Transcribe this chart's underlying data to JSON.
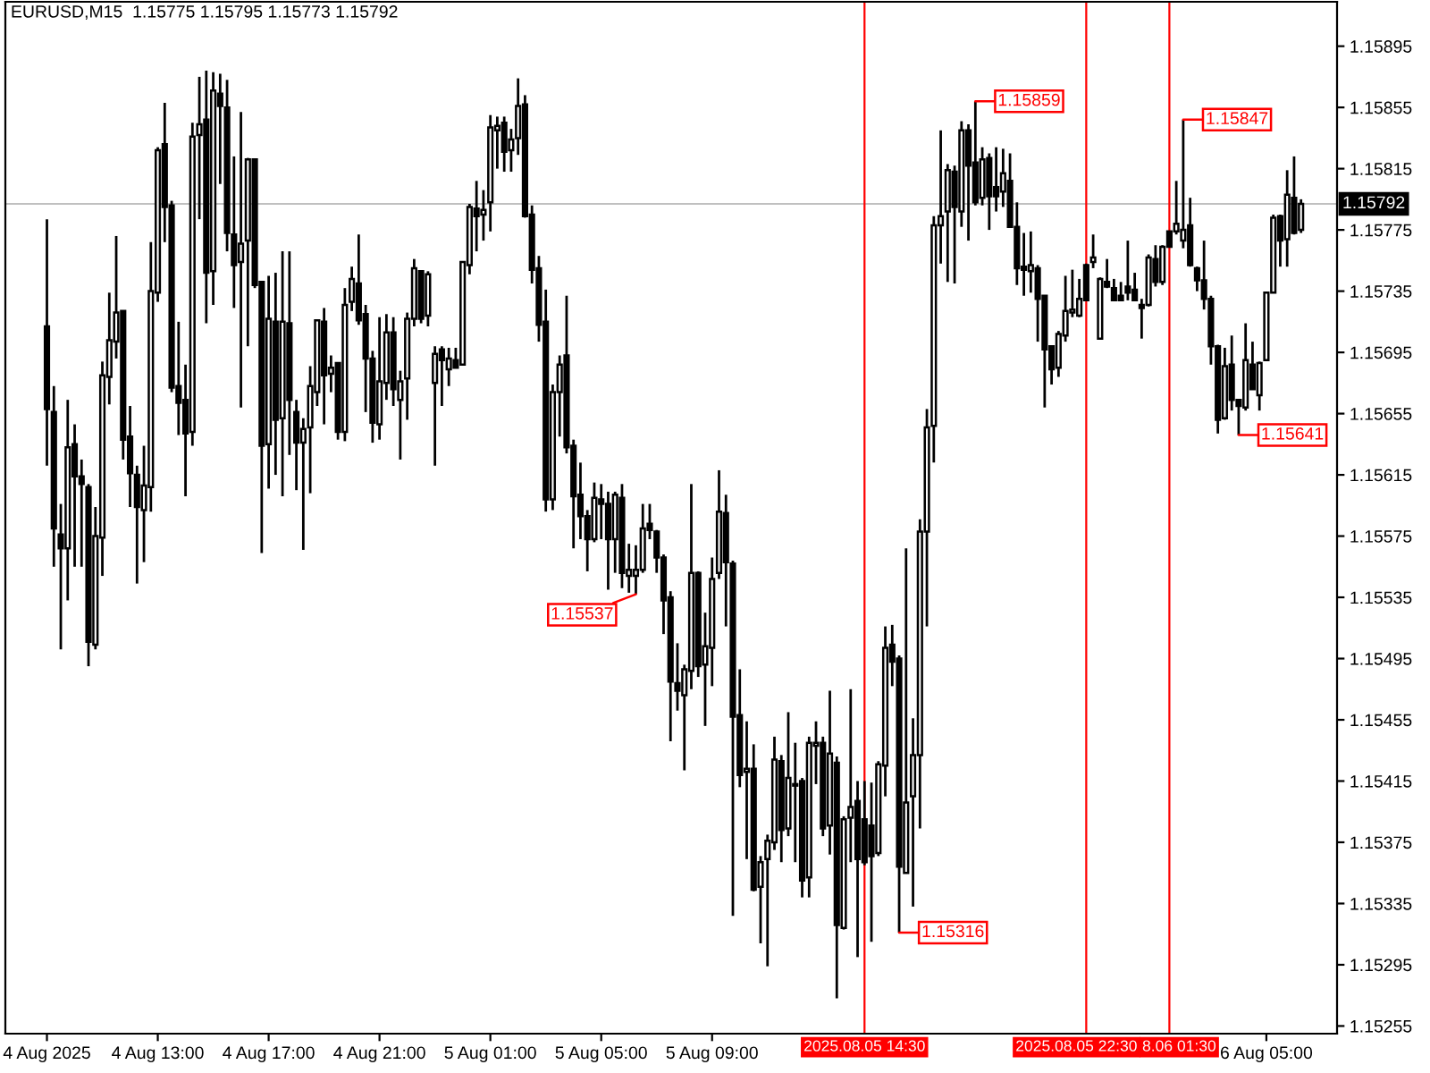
{
  "chart_data": {
    "type": "candlestick",
    "title": "EURUSD,M15  1.15775 1.15795 1.15773 1.15792",
    "color": "#000000",
    "x": [
      "2025-08-04T09:00",
      "2025-08-04T09:15",
      "2025-08-04T09:30",
      "2025-08-04T09:45",
      "2025-08-04T10:00",
      "2025-08-04T10:15",
      "2025-08-04T10:30",
      "2025-08-04T10:45",
      "2025-08-04T11:00",
      "2025-08-04T11:15",
      "2025-08-04T11:30",
      "2025-08-04T11:45",
      "2025-08-04T12:00",
      "2025-08-04T12:15",
      "2025-08-04T12:30",
      "2025-08-04T12:45",
      "2025-08-04T13:00",
      "2025-08-04T13:15",
      "2025-08-04T13:30",
      "2025-08-04T13:45",
      "2025-08-04T14:00",
      "2025-08-04T14:15",
      "2025-08-04T14:30",
      "2025-08-04T14:45",
      "2025-08-04T15:00",
      "2025-08-04T15:15",
      "2025-08-04T15:30",
      "2025-08-04T15:45",
      "2025-08-04T16:00",
      "2025-08-04T16:15",
      "2025-08-04T16:30",
      "2025-08-04T16:45",
      "2025-08-04T17:00",
      "2025-08-04T17:15",
      "2025-08-04T17:30",
      "2025-08-04T17:45",
      "2025-08-04T18:00",
      "2025-08-04T18:15",
      "2025-08-04T18:30",
      "2025-08-04T18:45",
      "2025-08-04T19:00",
      "2025-08-04T19:15",
      "2025-08-04T19:30",
      "2025-08-04T19:45",
      "2025-08-04T20:00",
      "2025-08-04T20:15",
      "2025-08-04T20:30",
      "2025-08-04T20:45",
      "2025-08-04T21:00",
      "2025-08-04T21:15",
      "2025-08-04T21:30",
      "2025-08-04T21:45",
      "2025-08-04T22:00",
      "2025-08-04T22:15",
      "2025-08-04T22:30",
      "2025-08-04T22:45",
      "2025-08-04T23:00",
      "2025-08-04T23:15",
      "2025-08-04T23:30",
      "2025-08-04T23:45",
      "2025-08-05T00:00",
      "2025-08-05T00:15",
      "2025-08-05T00:30",
      "2025-08-05T00:45",
      "2025-08-05T01:00",
      "2025-08-05T01:15",
      "2025-08-05T01:30",
      "2025-08-05T01:45",
      "2025-08-05T02:00",
      "2025-08-05T02:15",
      "2025-08-05T02:30",
      "2025-08-05T02:45",
      "2025-08-05T03:00",
      "2025-08-05T03:15",
      "2025-08-05T03:30",
      "2025-08-05T03:45",
      "2025-08-05T04:00",
      "2025-08-05T04:15",
      "2025-08-05T04:30",
      "2025-08-05T04:45",
      "2025-08-05T05:00",
      "2025-08-05T05:15",
      "2025-08-05T05:30",
      "2025-08-05T05:45",
      "2025-08-05T06:00",
      "2025-08-05T06:15",
      "2025-08-05T06:30",
      "2025-08-05T06:45",
      "2025-08-05T07:00",
      "2025-08-05T07:15",
      "2025-08-05T07:30",
      "2025-08-05T07:45",
      "2025-08-05T08:00",
      "2025-08-05T08:15",
      "2025-08-05T08:30",
      "2025-08-05T08:45",
      "2025-08-05T09:00",
      "2025-08-05T09:15",
      "2025-08-05T09:30",
      "2025-08-05T09:45",
      "2025-08-05T10:00",
      "2025-08-05T10:15",
      "2025-08-05T10:30",
      "2025-08-05T10:45",
      "2025-08-05T11:00",
      "2025-08-05T11:15",
      "2025-08-05T11:30",
      "2025-08-05T11:45",
      "2025-08-05T12:00",
      "2025-08-05T12:15",
      "2025-08-05T12:30",
      "2025-08-05T12:45",
      "2025-08-05T13:00",
      "2025-08-05T13:15",
      "2025-08-05T13:30",
      "2025-08-05T13:45",
      "2025-08-05T14:00",
      "2025-08-05T14:15",
      "2025-08-05T14:30",
      "2025-08-05T14:45",
      "2025-08-05T15:00",
      "2025-08-05T15:15",
      "2025-08-05T15:30",
      "2025-08-05T15:45",
      "2025-08-05T16:00",
      "2025-08-05T16:15",
      "2025-08-05T16:30",
      "2025-08-05T16:45",
      "2025-08-05T17:00",
      "2025-08-05T17:15",
      "2025-08-05T17:30",
      "2025-08-05T17:45",
      "2025-08-05T18:00",
      "2025-08-05T18:15",
      "2025-08-05T18:30",
      "2025-08-05T18:45",
      "2025-08-05T19:00",
      "2025-08-05T19:15",
      "2025-08-05T19:30",
      "2025-08-05T19:45",
      "2025-08-05T20:00",
      "2025-08-05T20:15",
      "2025-08-05T20:30",
      "2025-08-05T20:45",
      "2025-08-05T21:00",
      "2025-08-05T21:15",
      "2025-08-05T21:30",
      "2025-08-05T21:45",
      "2025-08-05T22:00",
      "2025-08-05T22:15",
      "2025-08-05T22:30",
      "2025-08-05T22:45",
      "2025-08-05T23:00",
      "2025-08-05T23:15",
      "2025-08-05T23:30",
      "2025-08-05T23:45",
      "2025-08-06T00:00",
      "2025-08-06T00:15",
      "2025-08-06T00:30",
      "2025-08-06T00:45",
      "2025-08-06T01:00",
      "2025-08-06T01:15",
      "2025-08-06T01:30",
      "2025-08-06T01:45",
      "2025-08-06T02:00",
      "2025-08-06T02:15",
      "2025-08-06T02:30",
      "2025-08-06T02:45",
      "2025-08-06T03:00",
      "2025-08-06T03:15",
      "2025-08-06T03:30",
      "2025-08-06T03:45",
      "2025-08-06T04:00",
      "2025-08-06T04:15",
      "2025-08-06T04:30",
      "2025-08-06T04:45",
      "2025-08-06T05:00",
      "2025-08-06T05:15",
      "2025-08-06T05:30",
      "2025-08-06T05:45",
      "2025-08-06T06:00",
      "2025-08-06T06:15"
    ],
    "ohlc": [
      [
        1.15712,
        1.15782,
        1.15621,
        1.15658
      ],
      [
        1.15656,
        1.15673,
        1.15555,
        1.1558
      ],
      [
        1.15576,
        1.15596,
        1.15501,
        1.15567
      ],
      [
        1.15567,
        1.15664,
        1.15533,
        1.15633
      ],
      [
        1.15635,
        1.15648,
        1.15555,
        1.15614
      ],
      [
        1.15614,
        1.15625,
        1.15555,
        1.15609
      ],
      [
        1.15607,
        1.15609,
        1.1549,
        1.15506
      ],
      [
        1.15504,
        1.15594,
        1.15501,
        1.15575
      ],
      [
        1.15574,
        1.15689,
        1.15549,
        1.1568
      ],
      [
        1.15679,
        1.15734,
        1.15661,
        1.15703
      ],
      [
        1.15702,
        1.15771,
        1.15691,
        1.15721
      ],
      [
        1.15722,
        1.15722,
        1.15625,
        1.15638
      ],
      [
        1.1564,
        1.1566,
        1.15594,
        1.15616
      ],
      [
        1.15615,
        1.15621,
        1.15544,
        1.15594
      ],
      [
        1.15592,
        1.15634,
        1.15558,
        1.15608
      ],
      [
        1.15607,
        1.15767,
        1.15591,
        1.15735
      ],
      [
        1.15734,
        1.15829,
        1.15728,
        1.15827
      ],
      [
        1.15831,
        1.15858,
        1.15767,
        1.1579
      ],
      [
        1.15791,
        1.15794,
        1.15669,
        1.15672
      ],
      [
        1.15673,
        1.15715,
        1.15641,
        1.15662
      ],
      [
        1.15664,
        1.15687,
        1.15601,
        1.15642
      ],
      [
        1.15643,
        1.15845,
        1.15634,
        1.15836
      ],
      [
        1.15837,
        1.15875,
        1.15782,
        1.15844
      ],
      [
        1.15847,
        1.15879,
        1.15714,
        1.15747
      ],
      [
        1.15748,
        1.15878,
        1.15726,
        1.15866
      ],
      [
        1.15864,
        1.15877,
        1.15805,
        1.15856
      ],
      [
        1.15855,
        1.15873,
        1.15761,
        1.15773
      ],
      [
        1.15772,
        1.15823,
        1.15724,
        1.15752
      ],
      [
        1.15754,
        1.15852,
        1.15659,
        1.15766
      ],
      [
        1.15768,
        1.15822,
        1.15699,
        1.15821
      ],
      [
        1.15821,
        1.15821,
        1.15737,
        1.15739
      ],
      [
        1.15741,
        1.15741,
        1.15564,
        1.15634
      ],
      [
        1.15635,
        1.15745,
        1.15606,
        1.15717
      ],
      [
        1.15715,
        1.15747,
        1.15615,
        1.15651
      ],
      [
        1.15652,
        1.15761,
        1.15601,
        1.15715
      ],
      [
        1.15714,
        1.15761,
        1.15628,
        1.15664
      ],
      [
        1.15656,
        1.15664,
        1.15605,
        1.15636
      ],
      [
        1.15636,
        1.15652,
        1.15566,
        1.15645
      ],
      [
        1.15646,
        1.15686,
        1.15603,
        1.15673
      ],
      [
        1.15669,
        1.15716,
        1.1566,
        1.15716
      ],
      [
        1.15715,
        1.15724,
        1.15648,
        1.1568
      ],
      [
        1.15681,
        1.15693,
        1.15669,
        1.15685
      ],
      [
        1.15688,
        1.15688,
        1.15638,
        1.15643
      ],
      [
        1.15643,
        1.15737,
        1.15637,
        1.15726
      ],
      [
        1.15728,
        1.15751,
        1.15722,
        1.15743
      ],
      [
        1.1574,
        1.15772,
        1.15713,
        1.15716
      ],
      [
        1.1572,
        1.15726,
        1.15656,
        1.15691
      ],
      [
        1.15691,
        1.15696,
        1.15636,
        1.15649
      ],
      [
        1.15648,
        1.15718,
        1.15638,
        1.15676
      ],
      [
        1.15675,
        1.1572,
        1.15664,
        1.15708
      ],
      [
        1.15708,
        1.15718,
        1.1566,
        1.15671
      ],
      [
        1.15664,
        1.15683,
        1.15625,
        1.15676
      ],
      [
        1.15678,
        1.15721,
        1.15651,
        1.15717
      ],
      [
        1.15717,
        1.15756,
        1.15712,
        1.1575
      ],
      [
        1.15748,
        1.15748,
        1.15714,
        1.15717
      ],
      [
        1.15719,
        1.15748,
        1.15712,
        1.15746
      ],
      [
        1.15675,
        1.15699,
        1.15621,
        1.15694
      ],
      [
        1.15697,
        1.15699,
        1.1566,
        1.1569
      ],
      [
        1.15684,
        1.15698,
        1.15673,
        1.15691
      ],
      [
        1.1569,
        1.15698,
        1.15685,
        1.15685
      ],
      [
        1.15687,
        1.15754,
        1.15687,
        1.15754
      ],
      [
        1.15752,
        1.15792,
        1.15746,
        1.1579
      ],
      [
        1.15789,
        1.15807,
        1.15761,
        1.15784
      ],
      [
        1.15785,
        1.15801,
        1.15768,
        1.15788
      ],
      [
        1.15793,
        1.1585,
        1.15774,
        1.15842
      ],
      [
        1.1584,
        1.15849,
        1.15815,
        1.15843
      ],
      [
        1.15845,
        1.15849,
        1.15813,
        1.15826
      ],
      [
        1.15827,
        1.15841,
        1.15813,
        1.15834
      ],
      [
        1.15835,
        1.15874,
        1.15824,
        1.15856
      ],
      [
        1.15857,
        1.15863,
        1.15783,
        1.15784
      ],
      [
        1.15785,
        1.15791,
        1.1574,
        1.15749
      ],
      [
        1.1575,
        1.15758,
        1.15702,
        1.15713
      ],
      [
        1.15715,
        1.15736,
        1.15591,
        1.15599
      ],
      [
        1.15599,
        1.15674,
        1.15592,
        1.15669
      ],
      [
        1.15669,
        1.15693,
        1.1564,
        1.15687
      ],
      [
        1.15693,
        1.15732,
        1.15629,
        1.15633
      ],
      [
        1.15634,
        1.15638,
        1.15567,
        1.15601
      ],
      [
        1.15602,
        1.15623,
        1.15573,
        1.15588
      ],
      [
        1.15588,
        1.15592,
        1.15552,
        1.15573
      ],
      [
        1.15573,
        1.1561,
        1.15571,
        1.156
      ],
      [
        1.15599,
        1.15609,
        1.15573,
        1.15596
      ],
      [
        1.15596,
        1.15604,
        1.1554,
        1.15573
      ],
      [
        1.15573,
        1.15604,
        1.15551,
        1.15602
      ],
      [
        1.156,
        1.15609,
        1.15541,
        1.15551
      ],
      [
        1.15549,
        1.1557,
        1.15538,
        1.15553
      ],
      [
        1.15549,
        1.15569,
        1.15537,
        1.15553
      ],
      [
        1.15553,
        1.15596,
        1.15551,
        1.1558
      ],
      [
        1.15583,
        1.15596,
        1.15573,
        1.15579
      ],
      [
        1.15578,
        1.15579,
        1.15551,
        1.15561
      ],
      [
        1.15561,
        1.15563,
        1.15511,
        1.15533
      ],
      [
        1.15535,
        1.15539,
        1.15441,
        1.1548
      ],
      [
        1.15479,
        1.15505,
        1.15461,
        1.15474
      ],
      [
        1.15471,
        1.15491,
        1.15422,
        1.15488
      ],
      [
        1.15487,
        1.15609,
        1.15475,
        1.15551
      ],
      [
        1.15551,
        1.15552,
        1.15483,
        1.1549
      ],
      [
        1.15491,
        1.15525,
        1.15451,
        1.15503
      ],
      [
        1.15502,
        1.15561,
        1.15477,
        1.15547
      ],
      [
        1.15551,
        1.15618,
        1.15547,
        1.15591
      ],
      [
        1.1559,
        1.15602,
        1.15516,
        1.15558
      ],
      [
        1.15557,
        1.15559,
        1.15327,
        1.15457
      ],
      [
        1.15458,
        1.15488,
        1.15411,
        1.15419
      ],
      [
        1.15421,
        1.15454,
        1.15364,
        1.15423
      ],
      [
        1.15423,
        1.15439,
        1.15343,
        1.15344
      ],
      [
        1.15346,
        1.15366,
        1.15309,
        1.15362
      ],
      [
        1.15364,
        1.1538,
        1.15294,
        1.15376
      ],
      [
        1.15375,
        1.15444,
        1.1537,
        1.15429
      ],
      [
        1.15428,
        1.15432,
        1.15362,
        1.15383
      ],
      [
        1.15384,
        1.1546,
        1.15379,
        1.15417
      ],
      [
        1.15412,
        1.1544,
        1.15362,
        1.15413
      ],
      [
        1.15415,
        1.15417,
        1.15339,
        1.1535
      ],
      [
        1.15352,
        1.15444,
        1.15339,
        1.1544
      ],
      [
        1.15438,
        1.15454,
        1.15413,
        1.1544
      ],
      [
        1.1544,
        1.15444,
        1.15379,
        1.15384
      ],
      [
        1.15386,
        1.15474,
        1.15367,
        1.15433
      ],
      [
        1.15427,
        1.15431,
        1.15273,
        1.15321
      ],
      [
        1.15319,
        1.15392,
        1.15318,
        1.1539
      ],
      [
        1.15391,
        1.15475,
        1.15362,
        1.15398
      ],
      [
        1.15402,
        1.15415,
        1.153,
        1.15364
      ],
      [
        1.1539,
        1.15415,
        1.1536,
        1.15362
      ],
      [
        1.15386,
        1.15414,
        1.1531,
        1.15366
      ],
      [
        1.15368,
        1.15428,
        1.15366,
        1.15426
      ],
      [
        1.15425,
        1.15516,
        1.15405,
        1.15502
      ],
      [
        1.15504,
        1.15517,
        1.15477,
        1.15493
      ],
      [
        1.15495,
        1.15497,
        1.15316,
        1.15359
      ],
      [
        1.15355,
        1.15567,
        1.15355,
        1.15401
      ],
      [
        1.15405,
        1.15456,
        1.15333,
        1.15432
      ],
      [
        1.15432,
        1.15586,
        1.15384,
        1.15578
      ],
      [
        1.15578,
        1.15658,
        1.15516,
        1.15646
      ],
      [
        1.15647,
        1.15784,
        1.15623,
        1.15778
      ],
      [
        1.15778,
        1.1584,
        1.15753,
        1.15784
      ],
      [
        1.15787,
        1.15818,
        1.15741,
        1.15814
      ],
      [
        1.15813,
        1.15817,
        1.1574,
        1.1579
      ],
      [
        1.15787,
        1.15846,
        1.15777,
        1.1584
      ],
      [
        1.1584,
        1.15844,
        1.15768,
        1.15817
      ],
      [
        1.15819,
        1.15859,
        1.15791,
        1.15793
      ],
      [
        1.15796,
        1.15829,
        1.15791,
        1.15821
      ],
      [
        1.15822,
        1.15825,
        1.15775,
        1.15797
      ],
      [
        1.15803,
        1.15829,
        1.15787,
        1.15797
      ],
      [
        1.158,
        1.15828,
        1.1579,
        1.15812
      ],
      [
        1.15807,
        1.15825,
        1.15777,
        1.15777
      ],
      [
        1.15777,
        1.15793,
        1.15739,
        1.1575
      ],
      [
        1.15751,
        1.15773,
        1.15732,
        1.15749
      ],
      [
        1.15748,
        1.15774,
        1.15734,
        1.15752
      ],
      [
        1.1575,
        1.15752,
        1.15702,
        1.1573
      ],
      [
        1.15732,
        1.15732,
        1.15659,
        1.15697
      ],
      [
        1.15699,
        1.15699,
        1.15674,
        1.15684
      ],
      [
        1.15685,
        1.15709,
        1.15679,
        1.15707
      ],
      [
        1.15706,
        1.15745,
        1.15702,
        1.15722
      ],
      [
        1.15721,
        1.15749,
        1.15718,
        1.15723
      ],
      [
        1.15719,
        1.15743,
        1.15718,
        1.1573
      ],
      [
        1.15752,
        1.15753,
        1.15729,
        1.15729
      ],
      [
        1.15754,
        1.15772,
        1.1575,
        1.15757
      ],
      [
        1.15704,
        1.15744,
        1.15704,
        1.15743
      ],
      [
        1.15741,
        1.15756,
        1.15737,
        1.15738
      ],
      [
        1.15737,
        1.15743,
        1.15729,
        1.15729
      ],
      [
        1.15732,
        1.15741,
        1.15729,
        1.15729
      ],
      [
        1.15738,
        1.15768,
        1.15729,
        1.15734
      ],
      [
        1.15736,
        1.15747,
        1.15729,
        1.15729
      ],
      [
        1.15726,
        1.1573,
        1.15704,
        1.15724
      ],
      [
        1.15726,
        1.15759,
        1.15725,
        1.15757
      ],
      [
        1.15756,
        1.15765,
        1.15738,
        1.15741
      ],
      [
        1.15741,
        1.15765,
        1.15739,
        1.15764
      ],
      [
        1.15774,
        1.15774,
        1.15764,
        1.15764
      ],
      [
        1.15774,
        1.15807,
        1.15772,
        1.15779
      ],
      [
        1.15768,
        1.15847,
        1.15763,
        1.15775
      ],
      [
        1.15778,
        1.15796,
        1.15751,
        1.15752
      ],
      [
        1.1575,
        1.15751,
        1.15735,
        1.15742
      ],
      [
        1.15742,
        1.15768,
        1.15723,
        1.1573
      ],
      [
        1.1573,
        1.15732,
        1.15687,
        1.15699
      ],
      [
        1.15699,
        1.157,
        1.15642,
        1.15651
      ],
      [
        1.15652,
        1.15698,
        1.15651,
        1.15686
      ],
      [
        1.15687,
        1.15706,
        1.15657,
        1.15664
      ],
      [
        1.15664,
        1.15664,
        1.15641,
        1.1566
      ],
      [
        1.15659,
        1.15714,
        1.15657,
        1.1569
      ],
      [
        1.15687,
        1.15702,
        1.15671,
        1.15671
      ],
      [
        1.15667,
        1.15689,
        1.15657,
        1.15688
      ],
      [
        1.1569,
        1.15734,
        1.1569,
        1.15734
      ],
      [
        1.15734,
        1.15785,
        1.15734,
        1.15783
      ],
      [
        1.15784,
        1.15785,
        1.15751,
        1.15768
      ],
      [
        1.15769,
        1.15814,
        1.15751,
        1.15798
      ],
      [
        1.15796,
        1.15823,
        1.15772,
        1.15773
      ],
      [
        1.15775,
        1.15795,
        1.15773,
        1.15792
      ]
    ],
    "xlim": [
      "2025-08-04T07:30",
      "2025-08-06T07:33"
    ],
    "ylim": [
      1.1525,
      1.15924
    ],
    "xticks": [
      {
        "value": "2025-08-04T09:00",
        "label": "4 Aug 2025"
      },
      {
        "value": "2025-08-04T13:00",
        "label": "4 Aug 13:00"
      },
      {
        "value": "2025-08-04T17:00",
        "label": "4 Aug 17:00"
      },
      {
        "value": "2025-08-04T21:00",
        "label": "4 Aug 21:00"
      },
      {
        "value": "2025-08-05T01:00",
        "label": "5 Aug 01:00"
      },
      {
        "value": "2025-08-05T05:00",
        "label": "5 Aug 05:00"
      },
      {
        "value": "2025-08-05T09:00",
        "label": "5 Aug 09:00"
      },
      {
        "value": "2025-08-06T05:00",
        "label": "6 Aug 05:00"
      }
    ],
    "yticks": [
      1.15255,
      1.15295,
      1.15335,
      1.15375,
      1.15415,
      1.15455,
      1.15495,
      1.15535,
      1.15575,
      1.15615,
      1.15655,
      1.15695,
      1.15735,
      1.15775,
      1.15815,
      1.15855,
      1.15895
    ],
    "ref_lines": [
      {
        "axis": "y",
        "value": 1.15792,
        "label": "1.15792",
        "color": "#c0c0c0"
      },
      {
        "axis": "x",
        "value": "2025-08-05T14:30",
        "label": "2025.08.05 14:30",
        "color": "#ff0000"
      },
      {
        "axis": "x",
        "value": "2025-08-05T22:30",
        "label": "2025.08.05 22:30",
        "color": "#ff0000"
      },
      {
        "axis": "x",
        "value": "2025-08-06T01:30",
        "label": "8.06 01:30",
        "color": "#ff0000"
      }
    ],
    "annotations": [
      {
        "text": "1.15537",
        "x": "2025-08-05T06:15",
        "y": 1.15537
      },
      {
        "text": "1.15316",
        "x": "2025-08-05T15:45",
        "y": 1.15316
      },
      {
        "text": "1.15859",
        "x": "2025-08-05T18:30",
        "y": 1.15859
      },
      {
        "text": "1.15847",
        "x": "2025-08-06T02:00",
        "y": 1.15847
      },
      {
        "text": "1.15641",
        "x": "2025-08-06T04:00",
        "y": 1.15641
      }
    ]
  }
}
